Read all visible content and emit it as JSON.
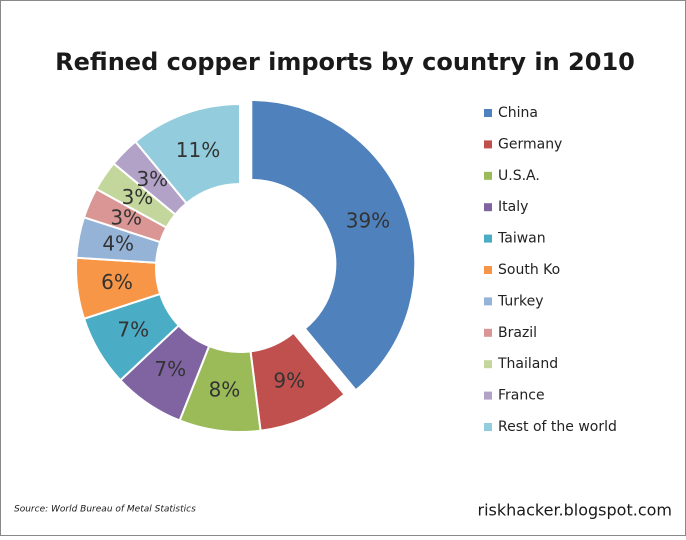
{
  "chart_data": {
    "type": "donut",
    "title": "Refined copper imports by country in 2010",
    "categories": [
      "China",
      "Germany",
      "U.S.A.",
      "Italy",
      "Taiwan",
      "South Ko",
      "Turkey",
      "Brazil",
      "Thailand",
      "France",
      "Rest of the world"
    ],
    "values": [
      39,
      9,
      8,
      7,
      7,
      6,
      4,
      3,
      3,
      3,
      11
    ],
    "value_labels": [
      "39%",
      "9%",
      "8%",
      "7%",
      "7%",
      "6%",
      "4%",
      "3%",
      "3%",
      "3%",
      "11%"
    ],
    "colors": [
      "#4f81bd",
      "#c0504d",
      "#9bbb59",
      "#8064a2",
      "#4bacc6",
      "#f79646",
      "#95b3d7",
      "#d99694",
      "#c3d69b",
      "#b3a2c7",
      "#93cddd"
    ],
    "legend": "right",
    "source": "Source: World Bureau of Metal Statistics",
    "credit": "riskhacker.blogspot.com"
  }
}
